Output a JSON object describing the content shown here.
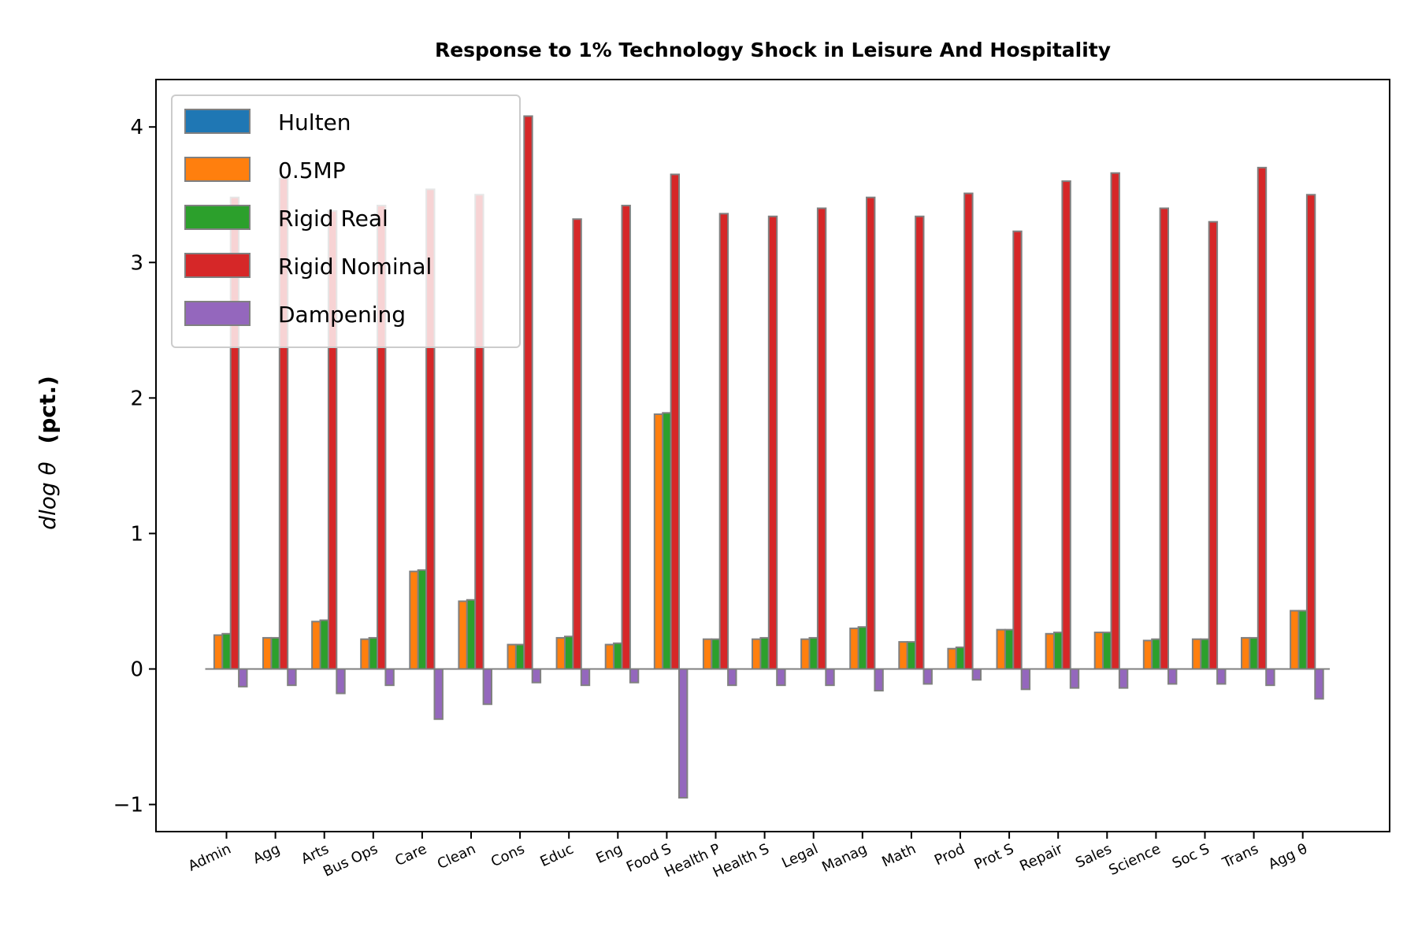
{
  "chart_data": {
    "type": "bar",
    "title": "Response to 1% Technology Shock in Leisure And Hospitality",
    "ylabel_italic": "dlog θ",
    "ylabel_bold": "(pct.)",
    "xlabel": "",
    "ylim": [
      -1.2,
      4.35
    ],
    "yticks": [
      -1,
      0,
      1,
      2,
      3,
      4
    ],
    "ytick_labels": [
      "−1",
      "0",
      "1",
      "2",
      "3",
      "4"
    ],
    "grid": false,
    "legend_position": "top-left",
    "categories": [
      "Admin",
      "Agg",
      "Arts",
      "Bus Ops",
      "Care",
      "Clean",
      "Cons",
      "Educ",
      "Eng",
      "Food S",
      "Health P",
      "Health S",
      "Legal",
      "Manag",
      "Math",
      "Prod",
      "Prot S",
      "Repair",
      "Sales",
      "Science",
      "Soc S",
      "Trans",
      "Agg θ"
    ],
    "series": [
      {
        "name": "Hulten",
        "color": "#1f77b4",
        "values": [
          0,
          0,
          0,
          0,
          0,
          0,
          0,
          0,
          0,
          0,
          0,
          0,
          0,
          0,
          0,
          0,
          0,
          0,
          0,
          0,
          0,
          0,
          0
        ]
      },
      {
        "name": "0.5MP",
        "color": "#ff7f0e",
        "values": [
          0.25,
          0.23,
          0.35,
          0.22,
          0.72,
          0.5,
          0.18,
          0.23,
          0.18,
          1.88,
          0.22,
          0.22,
          0.22,
          0.3,
          0.2,
          0.15,
          0.29,
          0.26,
          0.27,
          0.21,
          0.22,
          0.23,
          0.43
        ]
      },
      {
        "name": "Rigid Real",
        "color": "#2ca02c",
        "values": [
          0.26,
          0.23,
          0.36,
          0.23,
          0.73,
          0.51,
          0.18,
          0.24,
          0.19,
          1.89,
          0.22,
          0.23,
          0.23,
          0.31,
          0.2,
          0.16,
          0.29,
          0.27,
          0.27,
          0.22,
          0.22,
          0.23,
          0.43
        ]
      },
      {
        "name": "Rigid Nominal",
        "color": "#d62728",
        "values": [
          3.48,
          3.62,
          3.38,
          3.42,
          3.54,
          3.5,
          4.08,
          3.32,
          3.42,
          3.65,
          3.36,
          3.34,
          3.4,
          3.48,
          3.34,
          3.51,
          3.23,
          3.6,
          3.66,
          3.4,
          3.3,
          3.7,
          3.5
        ]
      },
      {
        "name": "Dampening",
        "color": "#9467bd",
        "values": [
          -0.13,
          -0.12,
          -0.18,
          -0.12,
          -0.37,
          -0.26,
          -0.1,
          -0.12,
          -0.1,
          -0.95,
          -0.12,
          -0.12,
          -0.12,
          -0.16,
          -0.11,
          -0.08,
          -0.15,
          -0.14,
          -0.14,
          -0.11,
          -0.11,
          -0.12,
          -0.22
        ]
      }
    ]
  }
}
